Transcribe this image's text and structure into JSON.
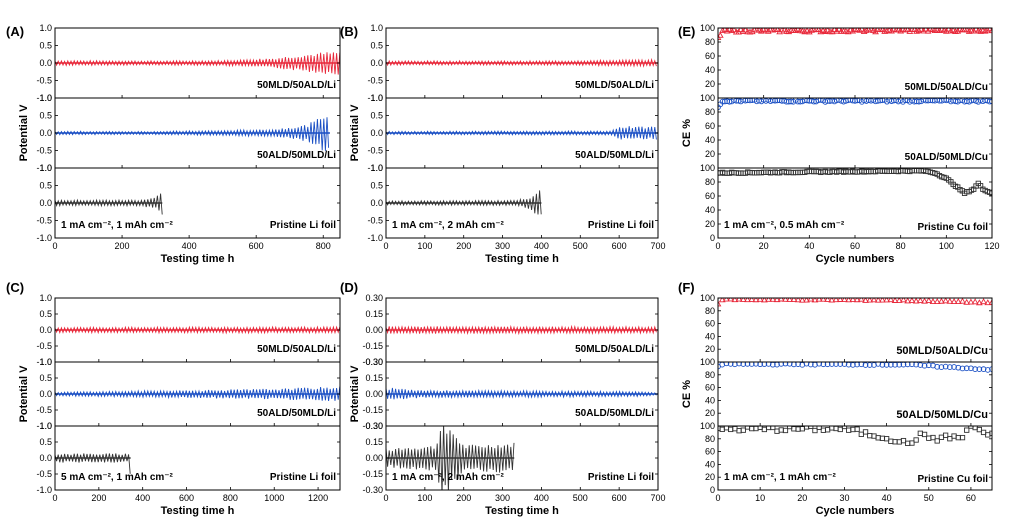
{
  "figure": {
    "description_free": true
  },
  "chart_data": [
    {
      "type": "line",
      "panel": "(A)",
      "xlabel": "Testing time h",
      "ylabel": "Potential V",
      "xlim": [
        0,
        850
      ],
      "xticks": [
        0,
        200,
        400,
        600,
        800
      ],
      "condition": "1 mA cm⁻², 1 mAh cm⁻²",
      "subplots": [
        {
          "label": "50MLD/50ALD/Li",
          "color": "#e8283a",
          "ylim": [
            -1.0,
            1.0
          ],
          "yticks": [
            "-1.0",
            "-0.5",
            "0.0",
            "0.5",
            "1.0"
          ],
          "series": {
            "name": "50MLD/50ALD/Li",
            "end": 850,
            "amp": [
              [
                0,
                0.06
              ],
              [
                300,
                0.05
              ],
              [
                500,
                0.06
              ],
              [
                650,
                0.12
              ],
              [
                800,
                0.26
              ],
              [
                850,
                0.28
              ]
            ]
          }
        },
        {
          "label": "50ALD/50MLD/Li",
          "color": "#1a4fc4",
          "ylim": [
            -1.0,
            1.0
          ],
          "yticks": [
            "-1.0",
            "-0.5",
            "0.0",
            "0.5",
            "1.0"
          ],
          "series": {
            "name": "50ALD/50MLD/Li",
            "end": 820,
            "amp": [
              [
                0,
                0.04
              ],
              [
                300,
                0.04
              ],
              [
                500,
                0.06
              ],
              [
                650,
                0.09
              ],
              [
                750,
                0.2
              ],
              [
                780,
                0.32
              ],
              [
                800,
                0.5
              ],
              [
                820,
                0.45
              ]
            ]
          }
        },
        {
          "label": "Pristine Li foil",
          "color": "#333333",
          "ylim": [
            -1.0,
            1.0
          ],
          "yticks": [
            "-1.0",
            "-0.5",
            "0.0",
            "0.5",
            "1.0"
          ],
          "series": {
            "name": "Pristine Li foil",
            "end": 320,
            "amp": [
              [
                0,
                0.07
              ],
              [
                250,
                0.07
              ],
              [
                300,
                0.15
              ],
              [
                315,
                0.25
              ],
              [
                320,
                0.3
              ]
            ]
          }
        }
      ]
    },
    {
      "type": "line",
      "panel": "(B)",
      "xlabel": "Testing time h",
      "ylabel": "Potential V",
      "xlim": [
        0,
        700
      ],
      "xticks": [
        0,
        100,
        200,
        300,
        400,
        500,
        600,
        700
      ],
      "condition": "1 mA cm⁻², 2 mAh cm⁻²",
      "subplots": [
        {
          "label": "50MLD/50ALD/Li",
          "color": "#e8283a",
          "ylim": [
            -1.0,
            1.0
          ],
          "yticks": [
            "-1.0",
            "-0.5",
            "0.0",
            "0.5",
            "1.0"
          ],
          "series": {
            "name": "50MLD/50ALD/Li",
            "end": 700,
            "amp": [
              [
                0,
                0.05
              ],
              [
                400,
                0.05
              ],
              [
                600,
                0.07
              ],
              [
                700,
                0.08
              ]
            ]
          }
        },
        {
          "label": "50ALD/50MLD/Li",
          "color": "#1a4fc4",
          "ylim": [
            -1.0,
            1.0
          ],
          "yticks": [
            "-1.0",
            "-0.5",
            "0.0",
            "0.5",
            "1.0"
          ],
          "series": {
            "name": "50ALD/50MLD/Li",
            "end": 700,
            "amp": [
              [
                0,
                0.04
              ],
              [
                580,
                0.05
              ],
              [
                600,
                0.18
              ],
              [
                650,
                0.15
              ],
              [
                700,
                0.16
              ]
            ]
          }
        },
        {
          "label": "Pristine Li foil",
          "color": "#333333",
          "ylim": [
            -1.0,
            1.0
          ],
          "yticks": [
            "-1.0",
            "-0.5",
            "0.0",
            "0.5",
            "1.0"
          ],
          "series": {
            "name": "Pristine Li foil",
            "end": 400,
            "amp": [
              [
                0,
                0.05
              ],
              [
                330,
                0.06
              ],
              [
                370,
                0.15
              ],
              [
                390,
                0.3
              ],
              [
                400,
                0.32
              ]
            ]
          }
        }
      ]
    },
    {
      "type": "scatter",
      "panel": "(E)",
      "xlabel": "Cycle numbers",
      "ylabel": "CE %",
      "xlim": [
        0,
        120
      ],
      "xticks": [
        0,
        20,
        40,
        60,
        80,
        100,
        120
      ],
      "condition": "1 mA cm⁻², 0.5 mAh cm⁻²",
      "subplots": [
        {
          "label": "50MLD/50ALD/Cu",
          "color": "#e8283a",
          "marker": "triangle",
          "ylim": [
            0,
            100
          ],
          "yticks": [
            "0",
            "20",
            "40",
            "60",
            "80",
            "100"
          ],
          "series": {
            "name": "50MLD/50ALD/Cu",
            "x_end": 120,
            "profile": [
              [
                0,
                85
              ],
              [
                2,
                96
              ],
              [
                120,
                97
              ]
            ],
            "noise": 2
          }
        },
        {
          "label": "50ALD/50MLD/Cu",
          "color": "#1a4fc4",
          "marker": "circle",
          "ylim": [
            0,
            100
          ],
          "yticks": [
            "0",
            "20",
            "40",
            "60",
            "80",
            "100"
          ],
          "series": {
            "name": "50ALD/50MLD/Cu",
            "x_end": 120,
            "profile": [
              [
                0,
                88
              ],
              [
                2,
                96
              ],
              [
                120,
                96
              ]
            ],
            "noise": 1.5
          }
        },
        {
          "label": "Pristine Cu foil",
          "color": "#333333",
          "marker": "square",
          "ylim": [
            0,
            100
          ],
          "yticks": [
            "0",
            "20",
            "40",
            "60",
            "80",
            "100"
          ],
          "series": {
            "name": "Pristine Cu foil",
            "x_end": 120,
            "profile": [
              [
                0,
                93
              ],
              [
                90,
                96
              ],
              [
                95,
                93
              ],
              [
                100,
                85
              ],
              [
                105,
                72
              ],
              [
                108,
                64
              ],
              [
                112,
                70
              ],
              [
                114,
                78
              ],
              [
                116,
                70
              ],
              [
                120,
                64
              ]
            ],
            "noise": 0.8
          }
        }
      ]
    },
    {
      "type": "line",
      "panel": "(C)",
      "xlabel": "Testing time h",
      "ylabel": "Potential V",
      "xlim": [
        0,
        1300
      ],
      "xticks": [
        0,
        200,
        400,
        600,
        800,
        1000,
        1200
      ],
      "condition": "5 mA cm⁻², 1 mAh cm⁻²",
      "subplots": [
        {
          "label": "50MLD/50ALD/Li",
          "color": "#e8283a",
          "ylim": [
            -1.0,
            1.0
          ],
          "yticks": [
            "-1.0",
            "-0.5",
            "0.0",
            "0.5",
            "1.0"
          ],
          "series": {
            "name": "50MLD/50ALD/Li",
            "end": 1300,
            "amp": [
              [
                0,
                0.07
              ],
              [
                1300,
                0.08
              ]
            ]
          }
        },
        {
          "label": "50ALD/50MLD/Li",
          "color": "#1a4fc4",
          "ylim": [
            -1.0,
            1.0
          ],
          "yticks": [
            "-1.0",
            "-0.5",
            "0.0",
            "0.5",
            "1.0"
          ],
          "series": {
            "name": "50ALD/50MLD/Li",
            "end": 1300,
            "amp": [
              [
                0,
                0.05
              ],
              [
                600,
                0.1
              ],
              [
                1000,
                0.14
              ],
              [
                1300,
                0.2
              ]
            ]
          }
        },
        {
          "label": "Pristine Li foil",
          "color": "#333333",
          "ylim": [
            -1.0,
            1.0
          ],
          "yticks": [
            "-1.0",
            "-0.5",
            "0.0",
            "0.5",
            "1.0"
          ],
          "series": {
            "name": "Pristine Li foil",
            "end": 345,
            "amp": [
              [
                0,
                0.12
              ],
              [
                340,
                0.12
              ],
              [
                345,
                0.75
              ]
            ]
          }
        }
      ]
    },
    {
      "type": "line",
      "panel": "(D)",
      "xlabel": "Testing time h",
      "ylabel": "Potential V",
      "xlim": [
        0,
        700
      ],
      "xticks": [
        0,
        100,
        200,
        300,
        400,
        500,
        600,
        700
      ],
      "condition": "1 mA cm⁻², 2 mAh cm⁻²",
      "subplots": [
        {
          "label": "50MLD/50ALD/Li",
          "color": "#e8283a",
          "ylim": [
            -0.3,
            0.3
          ],
          "yticks": [
            "-0.30",
            "-0.15",
            "0.00",
            "0.15",
            "0.30"
          ],
          "series": {
            "name": "50MLD/50ALD/Li",
            "end": 700,
            "amp": [
              [
                0,
                0.03
              ],
              [
                700,
                0.025
              ]
            ]
          }
        },
        {
          "label": "50ALD/50MLD/Li",
          "color": "#1a4fc4",
          "ylim": [
            -0.3,
            0.3
          ],
          "yticks": [
            "-0.30",
            "-0.15",
            "0.00",
            "0.15",
            "0.30"
          ],
          "series": {
            "name": "50ALD/50MLD/Li",
            "end": 700,
            "amp": [
              [
                0,
                0.05
              ],
              [
                100,
                0.03
              ],
              [
                620,
                0.02
              ],
              [
                640,
                0.02
              ],
              [
                700,
                0.01
              ]
            ]
          }
        },
        {
          "label": "Pristine Li foil",
          "color": "#333333",
          "ylim": [
            -0.3,
            0.3
          ],
          "yticks": [
            "-0.30",
            "-0.15",
            "0.00",
            "0.15",
            "0.30"
          ],
          "series": {
            "name": "Pristine Li foil",
            "end": 330,
            "amp": [
              [
                0,
                0.08
              ],
              [
                130,
                0.1
              ],
              [
                140,
                0.3
              ],
              [
                160,
                0.28
              ],
              [
                200,
                0.1
              ],
              [
                330,
                0.12
              ]
            ]
          }
        }
      ]
    },
    {
      "type": "scatter",
      "panel": "(F)",
      "xlabel": "Cycle numbers",
      "ylabel": "CE %",
      "xlim": [
        0,
        65
      ],
      "xticks": [
        0,
        10,
        20,
        30,
        40,
        50,
        60
      ],
      "condition": "1 mA cm⁻², 1 mAh cm⁻²",
      "subplots": [
        {
          "label": "50MLD/50ALD/Cu",
          "color": "#e8283a",
          "marker": "triangle",
          "ylim": [
            0,
            100
          ],
          "yticks": [
            "0",
            "20",
            "40",
            "60",
            "80",
            "100"
          ],
          "series": {
            "name": "50MLD/50ALD/Cu",
            "x_end": 65,
            "profile": [
              [
                0,
                90
              ],
              [
                1,
                98
              ],
              [
                40,
                97
              ],
              [
                65,
                93
              ]
            ],
            "noise": 1
          }
        },
        {
          "label": "50ALD/50MLD/Cu",
          "color": "#1a4fc4",
          "marker": "circle",
          "ylim": [
            0,
            100
          ],
          "yticks": [
            "0",
            "20",
            "40",
            "60",
            "80",
            "100"
          ],
          "series": {
            "name": "50ALD/50MLD/Cu",
            "x_end": 65,
            "profile": [
              [
                0,
                93
              ],
              [
                2,
                97
              ],
              [
                45,
                96
              ],
              [
                65,
                88
              ]
            ],
            "noise": 1
          }
        },
        {
          "label": "Pristine Cu foil",
          "color": "#333333",
          "marker": "square",
          "ylim": [
            0,
            100
          ],
          "yticks": [
            "0",
            "20",
            "40",
            "60",
            "80",
            "100"
          ],
          "series": {
            "name": "Pristine Cu foil",
            "x_end": 65,
            "profile": [
              [
                0,
                95
              ],
              [
                30,
                96
              ],
              [
                35,
                88
              ],
              [
                40,
                82
              ],
              [
                45,
                72
              ],
              [
                48,
                85
              ],
              [
                52,
                80
              ],
              [
                55,
                83
              ],
              [
                58,
                82
              ],
              [
                60,
                100
              ],
              [
                62,
                95
              ],
              [
                64,
                85
              ]
            ],
            "noise": 4
          }
        }
      ]
    }
  ]
}
